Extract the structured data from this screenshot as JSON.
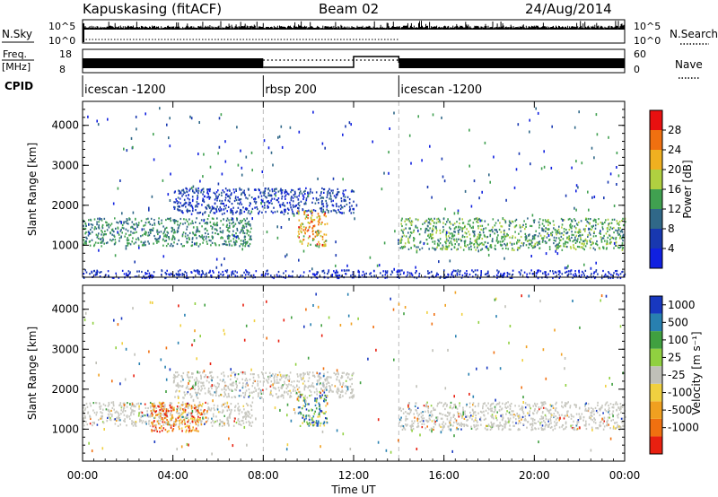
{
  "header": {
    "station": "Kapuskasing (fitACF)",
    "beam": "Beam 02",
    "date": "24/Aug/2014"
  },
  "top_panels": {
    "nsky_label": "N.Sky",
    "nsky_ticks": [
      "10^5",
      "10^0"
    ],
    "nsearch_label": "N.Search",
    "nsearch_ticks": [
      "10^5",
      "10^0"
    ],
    "freq_label": "Freq.",
    "freq_unit": "[MHz]",
    "freq_ticks": [
      "18",
      "8"
    ],
    "nave_label": "Nave",
    "nave_ticks": [
      "60",
      "0"
    ],
    "cpid_label": "CPID"
  },
  "cpid_segments": [
    {
      "label": "icescan -1200",
      "start_h": 0,
      "end_h": 8
    },
    {
      "label": "rbsp 200",
      "start_h": 8,
      "end_h": 14
    },
    {
      "label": "icescan -1200",
      "start_h": 14,
      "end_h": 24
    }
  ],
  "time_axis": {
    "label": "Time UT",
    "ticks": [
      "00:00",
      "04:00",
      "08:00",
      "12:00",
      "16:00",
      "20:00",
      "00:00"
    ]
  },
  "range_axis": {
    "label": "Slant Range [km]",
    "ticks": [
      "1000",
      "2000",
      "3000",
      "4000"
    ]
  },
  "power_scale": {
    "label": "Power [dB]",
    "ticks": [
      "4",
      "8",
      "12",
      "16",
      "20",
      "24",
      "28"
    ],
    "colors": [
      "#1020e0",
      "#1838b0",
      "#306888",
      "#40a050",
      "#b0d040",
      "#f0b020",
      "#f07010",
      "#e81010"
    ]
  },
  "velocity_scale": {
    "label": "Velocity [m s⁻¹]",
    "ticks": [
      "1000",
      "500",
      "100",
      "25",
      "-25",
      "-100",
      "-500",
      "-1000"
    ],
    "colors": [
      "#1838c0",
      "#2880b0",
      "#40a040",
      "#90d040",
      "#c0c0b8",
      "#f0d040",
      "#f0a020",
      "#f07010",
      "#e82010"
    ]
  },
  "chart_data": [
    {
      "type": "heatmap",
      "title": "Power",
      "xlabel": "Time UT",
      "ylabel": "Slant Range [km]",
      "xlim": [
        0,
        24
      ],
      "ylim": [
        200,
        4600
      ],
      "value_label": "Power [dB]",
      "value_range": [
        0,
        32
      ],
      "scatter_regions": [
        {
          "t": [
            0,
            7.5
          ],
          "r": [
            1000,
            1700
          ],
          "level": 12
        },
        {
          "t": [
            4,
            12
          ],
          "r": [
            1800,
            2450
          ],
          "level": 6
        },
        {
          "t": [
            9.5,
            10.8
          ],
          "r": [
            1000,
            1900
          ],
          "level": 24
        },
        {
          "t": [
            14,
            24
          ],
          "r": [
            900,
            1700
          ],
          "level": 14
        },
        {
          "t": [
            0,
            24
          ],
          "r": [
            200,
            400
          ],
          "level": 4
        }
      ]
    },
    {
      "type": "heatmap",
      "title": "Velocity",
      "xlabel": "Time UT",
      "ylabel": "Slant Range [km]",
      "xlim": [
        0,
        24
      ],
      "ylim": [
        200,
        4600
      ],
      "value_label": "Velocity [m s⁻¹]",
      "value_range": [
        -1000,
        1000
      ],
      "scatter_regions": [
        {
          "t": [
            0,
            7.5
          ],
          "r": [
            1100,
            1700
          ],
          "level": 0
        },
        {
          "t": [
            3,
            5.5
          ],
          "r": [
            950,
            1700
          ],
          "level": -300
        },
        {
          "t": [
            4,
            12
          ],
          "r": [
            1800,
            2450
          ],
          "level": 0
        },
        {
          "t": [
            9.5,
            10.8
          ],
          "r": [
            1100,
            1900
          ],
          "level": 400
        },
        {
          "t": [
            14,
            24
          ],
          "r": [
            1000,
            1700
          ],
          "level": 0
        }
      ]
    }
  ]
}
